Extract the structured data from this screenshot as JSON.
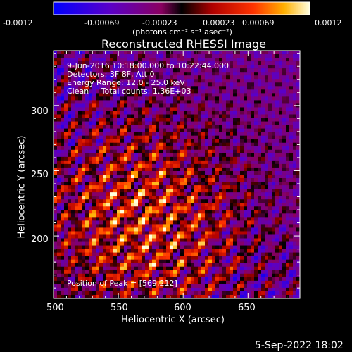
{
  "chart_data": {
    "type": "heatmap",
    "title": "Reconstructed RHESSI Image",
    "xlabel": "Heliocentric X (arcsec)",
    "ylabel": "Heliocentric Y (arcsec)",
    "xlim": [
      500,
      690
    ],
    "ylim": [
      152,
      342
    ],
    "x_ticks": [
      500,
      550,
      600,
      650
    ],
    "y_ticks": [
      200,
      250,
      300
    ],
    "colorbar": {
      "min": -0.0012,
      "max": 0.0012,
      "tick_labels": [
        "-0.0012",
        "-0.00069",
        "-0.00023",
        "0.00023",
        "0.00069",
        "0.0012"
      ],
      "units": "(photons cm⁻² s⁻¹ asec⁻²)"
    },
    "annotations": [
      "9-Jun-2016 10:18:00.000 to 10:22:44.000",
      "Detectors: 3F 8F, Att 0",
      "Energy Range: 12.0 - 25.0 keV",
      "Clean     Total counts: 1.36E+03"
    ],
    "peak_label": "Position of Peak = [569,212]",
    "peak_position": [
      569,
      212
    ]
  },
  "footer": {
    "date": "5-Sep-2022 18:02"
  }
}
